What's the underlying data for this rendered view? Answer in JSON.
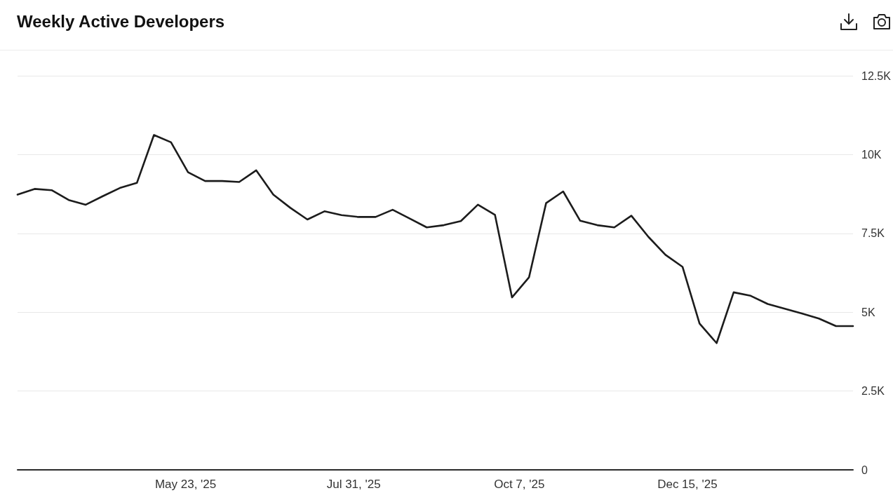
{
  "chart_data": {
    "type": "line",
    "title": "Weekly Active Developers",
    "x": [
      "2025-03-15",
      "2025-03-22",
      "2025-03-29",
      "2025-04-05",
      "2025-04-12",
      "2025-04-19",
      "2025-04-26",
      "2025-05-03",
      "2025-05-10",
      "2025-05-17",
      "2025-05-24",
      "2025-05-31",
      "2025-06-07",
      "2025-06-14",
      "2025-06-21",
      "2025-06-28",
      "2025-07-05",
      "2025-07-12",
      "2025-07-19",
      "2025-07-26",
      "2025-08-02",
      "2025-08-09",
      "2025-08-16",
      "2025-08-23",
      "2025-08-30",
      "2025-09-06",
      "2025-09-13",
      "2025-09-20",
      "2025-09-27",
      "2025-10-04",
      "2025-10-11",
      "2025-10-18",
      "2025-10-25",
      "2025-11-01",
      "2025-11-08",
      "2025-11-15",
      "2025-11-22",
      "2025-11-29",
      "2025-12-06",
      "2025-12-13",
      "2025-12-20",
      "2025-12-27",
      "2026-01-03",
      "2026-01-10",
      "2026-01-17",
      "2026-01-24",
      "2026-01-31",
      "2026-02-07",
      "2026-02-14",
      "2026-02-21"
    ],
    "series": [
      {
        "color": "#1c1c1c",
        "values": [
          8730,
          8910,
          8870,
          8560,
          8410,
          8680,
          8940,
          9100,
          10620,
          10390,
          9440,
          9160,
          9160,
          9130,
          9500,
          8730,
          8310,
          7940,
          8200,
          8080,
          8020,
          8020,
          8250,
          7970,
          7690,
          7760,
          7890,
          8410,
          8090,
          5470,
          6110,
          8460,
          8830,
          7900,
          7760,
          7690,
          8060,
          7390,
          6820,
          6440,
          4640,
          4020,
          5630,
          5520,
          5260,
          5110,
          4960,
          4800,
          4560,
          4560
        ]
      }
    ],
    "xlim": [
      "2025-03-15",
      "2026-02-21"
    ],
    "xticks": [
      {
        "value": "2025-05-23",
        "label": "May 23, '25"
      },
      {
        "value": "2025-07-31",
        "label": "Jul 31, '25"
      },
      {
        "value": "2025-10-07",
        "label": "Oct 7, '25"
      },
      {
        "value": "2025-12-15",
        "label": "Dec 15, '25"
      }
    ],
    "ylim": [
      0,
      12500
    ],
    "yticks": [
      0,
      {
        "value": 2500,
        "label": "2.5K"
      },
      {
        "value": 5000,
        "label": "5K"
      },
      {
        "value": 7500,
        "label": "7.5K"
      },
      {
        "value": 10000,
        "label": "10K"
      },
      {
        "value": 12500,
        "label": "12.5K"
      }
    ],
    "grid": "y",
    "marker": "none",
    "line_style": "solid"
  }
}
